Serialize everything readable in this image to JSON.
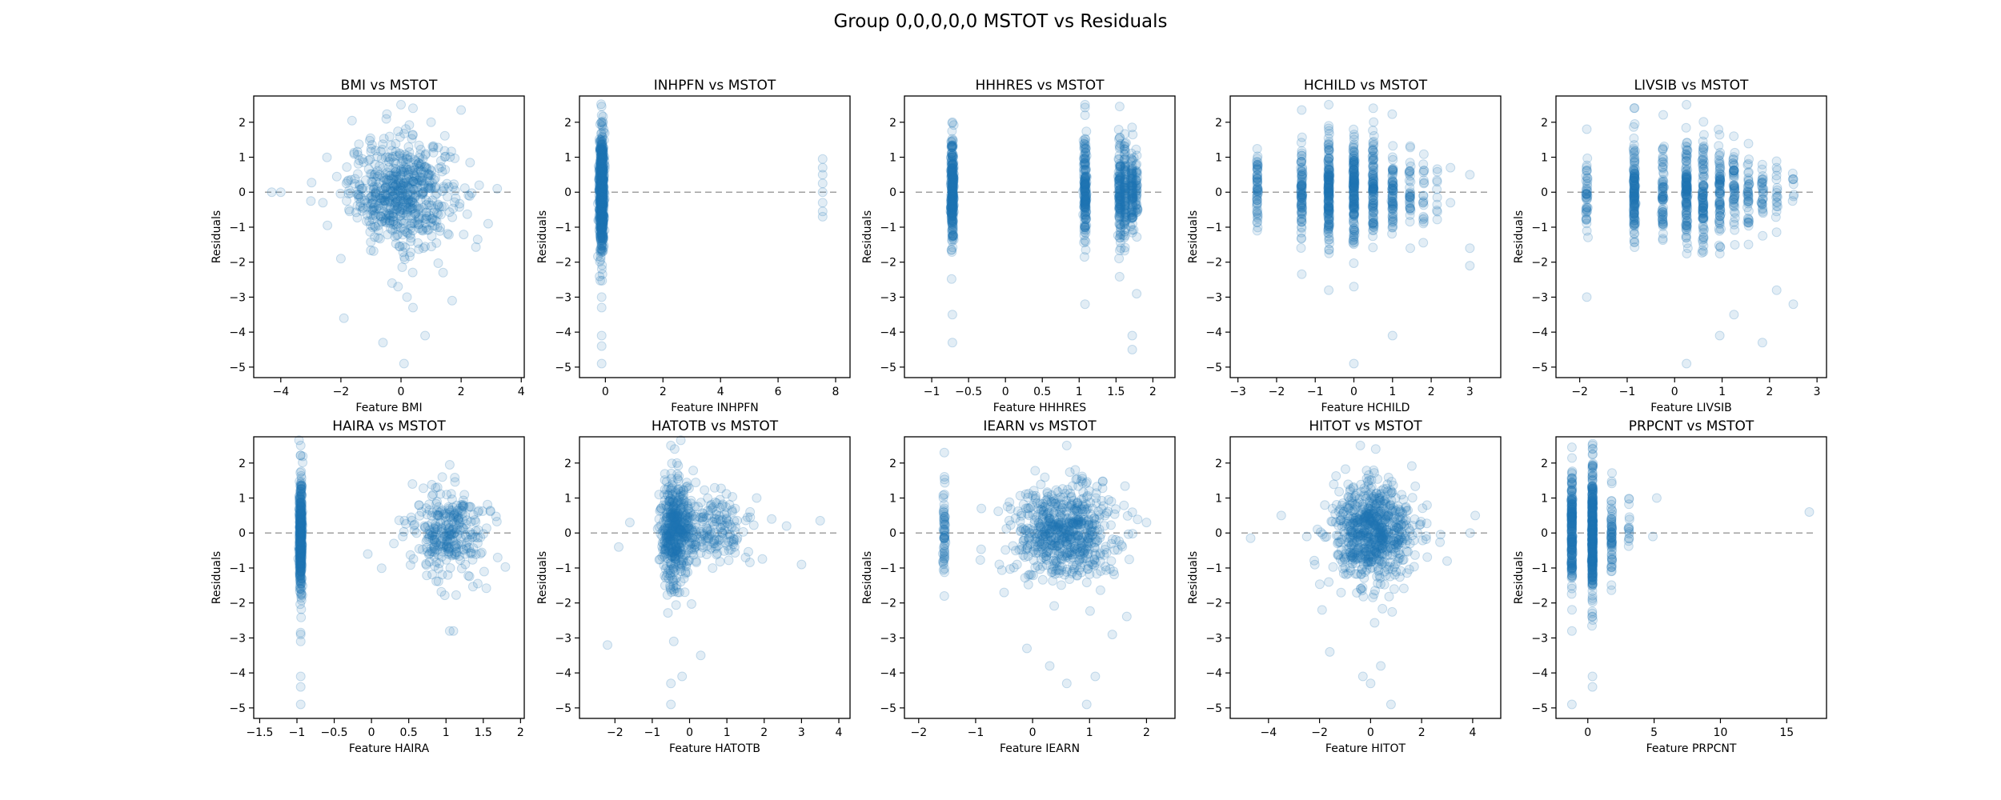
{
  "figure_title": "Group 0,0,0,0,0 MSTOT vs Residuals",
  "colors": {
    "points": "#1f77b4",
    "zero_line": "#a0a0a0",
    "axes": "#000000"
  },
  "chart_data": [
    {
      "type": "scatter",
      "title": "BMI vs MSTOT",
      "xlabel": "Feature BMI",
      "ylabel": "Residuals",
      "xlim": [
        -4.9,
        4.1
      ],
      "ylim": [
        -5.3,
        2.75
      ],
      "xticks": [
        -4,
        -2,
        0,
        2,
        4
      ],
      "yticks": [
        -5,
        -4,
        -3,
        -2,
        -1,
        0,
        1,
        2
      ],
      "reference_line_y": 0,
      "clusters": [
        {
          "x": 0,
          "y": 0,
          "sx": 0.85,
          "sy": 0.75,
          "n": 620
        }
      ],
      "outliers": [
        [
          -4.3,
          0.0
        ],
        [
          -4.0,
          0.0
        ],
        [
          0.0,
          2.5
        ],
        [
          0.4,
          2.4
        ],
        [
          1.0,
          2.0
        ],
        [
          2.0,
          2.35
        ],
        [
          -2.0,
          -1.9
        ],
        [
          -0.3,
          -2.6
        ],
        [
          -0.1,
          -2.7
        ],
        [
          -1.9,
          -3.6
        ],
        [
          0.2,
          -3.0
        ],
        [
          0.4,
          -3.3
        ],
        [
          -0.6,
          -4.3
        ],
        [
          0.8,
          -4.1
        ],
        [
          0.1,
          -4.9
        ],
        [
          1.4,
          -2.3
        ],
        [
          1.7,
          -3.1
        ],
        [
          2.9,
          -0.9
        ],
        [
          2.6,
          0.2
        ],
        [
          -3.0,
          -0.25
        ],
        [
          -2.6,
          -0.3
        ],
        [
          3.2,
          0.1
        ]
      ]
    },
    {
      "type": "scatter",
      "title": "INHPFN vs MSTOT",
      "xlabel": "Feature INHPFN",
      "ylabel": "Residuals",
      "xlim": [
        -0.9,
        8.5
      ],
      "ylim": [
        -5.3,
        2.75
      ],
      "xticks": [
        0,
        2,
        4,
        6,
        8
      ],
      "yticks": [
        -5,
        -4,
        -3,
        -2,
        -1,
        0,
        1,
        2
      ],
      "reference_line_y": 0,
      "clusters": [
        {
          "x": -0.13,
          "y": 0,
          "sx": 0.04,
          "sy": 0.8,
          "n": 780
        }
      ],
      "outliers": [
        [
          7.55,
          0.95
        ],
        [
          7.55,
          0.7
        ],
        [
          7.55,
          0.5
        ],
        [
          7.55,
          0.25
        ],
        [
          7.55,
          0.0
        ],
        [
          7.55,
          -0.3
        ],
        [
          7.55,
          -0.55
        ],
        [
          7.55,
          -0.7
        ],
        [
          -0.13,
          2.45
        ],
        [
          -0.13,
          2.2
        ],
        [
          -0.13,
          -3.0
        ],
        [
          -0.13,
          -3.3
        ],
        [
          -0.13,
          -4.1
        ],
        [
          -0.13,
          -4.4
        ],
        [
          -0.13,
          -4.9
        ]
      ]
    },
    {
      "type": "scatter",
      "title": "HHHRES vs MSTOT",
      "xlabel": "Feature HHHRES",
      "ylabel": "Residuals",
      "xlim": [
        -1.37,
        2.3
      ],
      "ylim": [
        -5.3,
        2.75
      ],
      "xticks": [
        -1.0,
        -0.5,
        0.0,
        0.5,
        1.0,
        1.5,
        2.0
      ],
      "yticks": [
        -5,
        -4,
        -3,
        -2,
        -1,
        0,
        1,
        2
      ],
      "reference_line_y": 0,
      "clusters": [
        {
          "x": -0.72,
          "y": 0,
          "sx": 0.01,
          "sy": 0.75,
          "n": 330
        },
        {
          "x": 1.08,
          "y": 0,
          "sx": 0.01,
          "sy": 0.75,
          "n": 180
        },
        {
          "x": 1.55,
          "y": 0,
          "sx": 0.01,
          "sy": 0.7,
          "n": 120
        },
        {
          "x": 1.62,
          "y": 0,
          "sx": 0.01,
          "sy": 0.7,
          "n": 90
        },
        {
          "x": 1.72,
          "y": 0,
          "sx": 0.01,
          "sy": 0.7,
          "n": 90
        },
        {
          "x": 1.78,
          "y": 0,
          "sx": 0.01,
          "sy": 0.6,
          "n": 40
        }
      ],
      "outliers": [
        [
          -0.72,
          2.0
        ],
        [
          -0.72,
          -3.5
        ],
        [
          -0.72,
          -4.3
        ],
        [
          1.08,
          2.5
        ],
        [
          1.08,
          2.2
        ],
        [
          1.08,
          -3.2
        ],
        [
          1.55,
          2.45
        ],
        [
          1.72,
          -4.1
        ],
        [
          1.72,
          -4.5
        ],
        [
          1.78,
          -2.9
        ]
      ]
    },
    {
      "type": "scatter",
      "title": "HCHILD vs MSTOT",
      "xlabel": "Feature HCHILD",
      "ylabel": "Residuals",
      "xlim": [
        -3.2,
        3.8
      ],
      "ylim": [
        -5.3,
        2.75
      ],
      "xticks": [
        -3,
        -2,
        -1,
        0,
        1,
        2,
        3
      ],
      "yticks": [
        -5,
        -4,
        -3,
        -2,
        -1,
        0,
        1,
        2
      ],
      "reference_line_y": 0,
      "clusters": [
        {
          "x": -2.5,
          "y": 0,
          "sx": 0.01,
          "sy": 0.6,
          "n": 60
        },
        {
          "x": -1.35,
          "y": 0,
          "sx": 0.01,
          "sy": 0.7,
          "n": 90
        },
        {
          "x": -0.65,
          "y": 0,
          "sx": 0.01,
          "sy": 0.75,
          "n": 170
        },
        {
          "x": 0.0,
          "y": 0,
          "sx": 0.01,
          "sy": 0.75,
          "n": 170
        },
        {
          "x": 0.5,
          "y": 0,
          "sx": 0.01,
          "sy": 0.75,
          "n": 110
        },
        {
          "x": 1.0,
          "y": 0,
          "sx": 0.01,
          "sy": 0.7,
          "n": 70
        },
        {
          "x": 1.45,
          "y": 0,
          "sx": 0.01,
          "sy": 0.6,
          "n": 35
        },
        {
          "x": 1.8,
          "y": 0,
          "sx": 0.01,
          "sy": 0.6,
          "n": 20
        },
        {
          "x": 2.15,
          "y": 0,
          "sx": 0.01,
          "sy": 0.5,
          "n": 10
        }
      ],
      "outliers": [
        [
          -1.35,
          2.35
        ],
        [
          -0.65,
          2.5
        ],
        [
          -0.65,
          -2.8
        ],
        [
          0.0,
          -4.9
        ],
        [
          0.0,
          -2.7
        ],
        [
          0.5,
          2.4
        ],
        [
          1.0,
          -4.1
        ],
        [
          2.5,
          0.7
        ],
        [
          2.5,
          -0.3
        ],
        [
          3.0,
          0.5
        ],
        [
          3.0,
          -1.6
        ],
        [
          3.0,
          -2.1
        ]
      ]
    },
    {
      "type": "scatter",
      "title": "LIVSIB vs MSTOT",
      "xlabel": "Feature LIVSIB",
      "ylabel": "Residuals",
      "xlim": [
        -2.5,
        3.2
      ],
      "ylim": [
        -5.3,
        2.75
      ],
      "xticks": [
        -2,
        -1,
        0,
        1,
        2,
        3
      ],
      "yticks": [
        -5,
        -4,
        -3,
        -2,
        -1,
        0,
        1,
        2
      ],
      "reference_line_y": 0,
      "clusters": [
        {
          "x": -1.85,
          "y": 0,
          "sx": 0.01,
          "sy": 0.6,
          "n": 45
        },
        {
          "x": -0.85,
          "y": 0,
          "sx": 0.01,
          "sy": 0.75,
          "n": 140
        },
        {
          "x": -0.25,
          "y": 0,
          "sx": 0.01,
          "sy": 0.7,
          "n": 70
        },
        {
          "x": 0.25,
          "y": 0,
          "sx": 0.01,
          "sy": 0.75,
          "n": 130
        },
        {
          "x": 0.6,
          "y": 0,
          "sx": 0.01,
          "sy": 0.75,
          "n": 100
        },
        {
          "x": 0.95,
          "y": 0,
          "sx": 0.01,
          "sy": 0.7,
          "n": 80
        },
        {
          "x": 1.25,
          "y": 0,
          "sx": 0.01,
          "sy": 0.65,
          "n": 55
        },
        {
          "x": 1.55,
          "y": 0,
          "sx": 0.01,
          "sy": 0.6,
          "n": 40
        },
        {
          "x": 1.85,
          "y": 0,
          "sx": 0.01,
          "sy": 0.55,
          "n": 30
        },
        {
          "x": 2.15,
          "y": 0,
          "sx": 0.01,
          "sy": 0.5,
          "n": 18
        },
        {
          "x": 2.5,
          "y": 0,
          "sx": 0.01,
          "sy": 0.45,
          "n": 8
        }
      ],
      "outliers": [
        [
          -1.85,
          1.8
        ],
        [
          -1.85,
          -3.0
        ],
        [
          -0.85,
          2.4
        ],
        [
          0.25,
          2.5
        ],
        [
          0.25,
          -4.9
        ],
        [
          0.95,
          -4.1
        ],
        [
          1.85,
          -4.3
        ],
        [
          2.5,
          -3.2
        ],
        [
          2.15,
          -2.8
        ],
        [
          1.25,
          -3.5
        ]
      ]
    },
    {
      "type": "scatter",
      "title": "HAIRA vs MSTOT",
      "xlabel": "Feature HAIRA",
      "ylabel": "Residuals",
      "xlim": [
        -1.58,
        2.05
      ],
      "ylim": [
        -5.3,
        2.75
      ],
      "xticks": [
        -1.5,
        -1.0,
        -0.5,
        0.0,
        0.5,
        1.0,
        1.5,
        2.0
      ],
      "yticks": [
        -5,
        -4,
        -3,
        -2,
        -1,
        0,
        1,
        2
      ],
      "reference_line_y": 0,
      "clusters": [
        {
          "x": -0.95,
          "y": 0,
          "sx": 0.01,
          "sy": 0.8,
          "n": 420
        },
        {
          "x": 1.0,
          "y": 0,
          "sx": 0.25,
          "sy": 0.65,
          "n": 300
        }
      ],
      "outliers": [
        [
          -0.95,
          2.5
        ],
        [
          -0.95,
          -4.1
        ],
        [
          -0.95,
          -4.4
        ],
        [
          -0.95,
          -4.9
        ],
        [
          -0.95,
          -2.9
        ],
        [
          -0.95,
          -3.1
        ],
        [
          0.55,
          1.4
        ],
        [
          0.95,
          1.6
        ],
        [
          1.05,
          1.95
        ],
        [
          1.05,
          -2.8
        ],
        [
          1.1,
          -2.8
        ],
        [
          0.3,
          -0.3
        ],
        [
          -0.05,
          -0.6
        ]
      ]
    },
    {
      "type": "scatter",
      "title": "HATOTB vs MSTOT",
      "xlabel": "Feature HATOTB",
      "ylabel": "Residuals",
      "xlim": [
        -2.95,
        4.3
      ],
      "ylim": [
        -5.3,
        2.75
      ],
      "xticks": [
        -2,
        -1,
        0,
        1,
        2,
        3,
        4
      ],
      "yticks": [
        -5,
        -4,
        -3,
        -2,
        -1,
        0,
        1,
        2
      ],
      "reference_line_y": 0,
      "clusters": [
        {
          "x": -0.4,
          "y": 0.05,
          "sx": 0.18,
          "sy": 0.75,
          "n": 420
        },
        {
          "x": 0.4,
          "y": 0.1,
          "sx": 0.55,
          "sy": 0.55,
          "n": 220
        }
      ],
      "outliers": [
        [
          -2.2,
          -3.2
        ],
        [
          -0.5,
          -4.3
        ],
        [
          -0.5,
          -4.9
        ],
        [
          -0.2,
          -4.1
        ],
        [
          0.3,
          -3.5
        ],
        [
          -0.5,
          2.5
        ],
        [
          -0.4,
          2.4
        ],
        [
          3.0,
          -0.9
        ],
        [
          3.5,
          0.35
        ],
        [
          2.2,
          0.4
        ],
        [
          2.6,
          0.2
        ],
        [
          1.8,
          1.0
        ],
        [
          -1.6,
          0.3
        ],
        [
          -1.9,
          -0.4
        ],
        [
          1.5,
          -0.7
        ]
      ]
    },
    {
      "type": "scatter",
      "title": "IEARN vs MSTOT",
      "xlabel": "Feature IEARN",
      "ylabel": "Residuals",
      "xlim": [
        -2.25,
        2.5
      ],
      "ylim": [
        -5.3,
        2.75
      ],
      "xticks": [
        -2,
        -1,
        0,
        1,
        2
      ],
      "yticks": [
        -5,
        -4,
        -3,
        -2,
        -1,
        0,
        1,
        2
      ],
      "reference_line_y": 0,
      "clusters": [
        {
          "x": -1.55,
          "y": 0,
          "sx": 0.01,
          "sy": 0.7,
          "n": 60
        },
        {
          "x": 0.55,
          "y": 0.05,
          "sx": 0.45,
          "sy": 0.7,
          "n": 640
        }
      ],
      "outliers": [
        [
          -1.55,
          2.3
        ],
        [
          -1.55,
          -1.8
        ],
        [
          0.6,
          -4.3
        ],
        [
          0.95,
          -4.9
        ],
        [
          1.1,
          -4.1
        ],
        [
          0.3,
          -3.8
        ],
        [
          -0.1,
          -3.3
        ],
        [
          0.6,
          2.5
        ],
        [
          1.4,
          -2.9
        ],
        [
          -0.5,
          -1.7
        ],
        [
          -0.9,
          0.7
        ],
        [
          2.0,
          0.3
        ]
      ]
    },
    {
      "type": "scatter",
      "title": "HITOT vs MSTOT",
      "xlabel": "Feature HITOT",
      "ylabel": "Residuals",
      "xlim": [
        -5.5,
        5.1
      ],
      "ylim": [
        -5.3,
        2.75
      ],
      "xticks": [
        -4,
        -2,
        0,
        2,
        4
      ],
      "yticks": [
        -5,
        -4,
        -3,
        -2,
        -1,
        0,
        1,
        2
      ],
      "reference_line_y": 0,
      "clusters": [
        {
          "x": 0.1,
          "y": 0.05,
          "sx": 0.75,
          "sy": 0.75,
          "n": 720
        }
      ],
      "outliers": [
        [
          -4.7,
          -0.15
        ],
        [
          -3.5,
          0.5
        ],
        [
          -2.5,
          -0.1
        ],
        [
          -1.6,
          -3.4
        ],
        [
          -1.9,
          -2.2
        ],
        [
          -0.3,
          -4.1
        ],
        [
          0.0,
          -4.3
        ],
        [
          0.8,
          -4.9
        ],
        [
          0.4,
          -3.8
        ],
        [
          3.9,
          0.0
        ],
        [
          4.1,
          0.5
        ],
        [
          3.0,
          -0.8
        ],
        [
          -0.4,
          2.5
        ],
        [
          0.2,
          2.4
        ]
      ]
    },
    {
      "type": "scatter",
      "title": "PRPCNT vs MSTOT",
      "xlabel": "Feature PRPCNT",
      "ylabel": "Residuals",
      "xlim": [
        -2.4,
        18.0
      ],
      "ylim": [
        -5.3,
        2.75
      ],
      "xticks": [
        0,
        5,
        10,
        15
      ],
      "yticks": [
        -5,
        -4,
        -3,
        -2,
        -1,
        0,
        1,
        2
      ],
      "reference_line_y": 0,
      "clusters": [
        {
          "x": -1.2,
          "y": 0,
          "sx": 0.02,
          "sy": 0.8,
          "n": 220
        },
        {
          "x": 0.35,
          "y": 0,
          "sx": 0.02,
          "sy": 0.85,
          "n": 420
        },
        {
          "x": 1.8,
          "y": 0,
          "sx": 0.02,
          "sy": 0.6,
          "n": 70
        },
        {
          "x": 3.1,
          "y": 0,
          "sx": 0.02,
          "sy": 0.45,
          "n": 15
        }
      ],
      "outliers": [
        [
          -1.2,
          2.45
        ],
        [
          -1.2,
          -2.8
        ],
        [
          -1.2,
          -4.9
        ],
        [
          0.35,
          2.4
        ],
        [
          0.35,
          -4.1
        ],
        [
          0.35,
          -4.4
        ],
        [
          5.2,
          1.0
        ],
        [
          16.7,
          0.6
        ],
        [
          4.9,
          -0.1
        ]
      ]
    }
  ]
}
